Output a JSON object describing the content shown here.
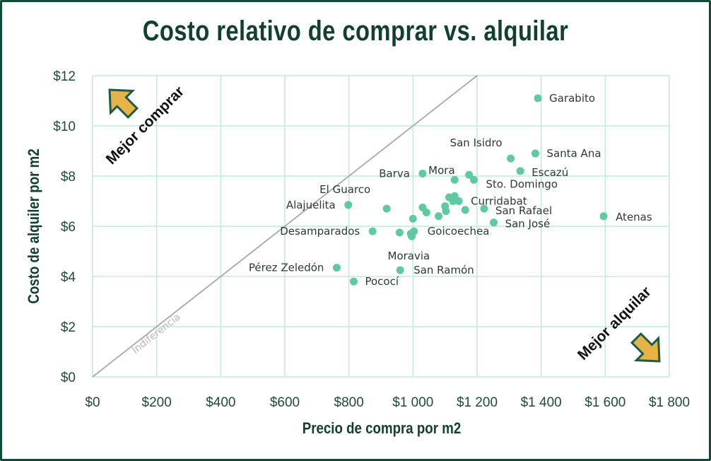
{
  "chart_data": {
    "type": "scatter",
    "title": "Costo relativo de comprar vs. alquilar",
    "xlabel": "Precio de compra por m2",
    "ylabel": "Costo de alquiler por m2",
    "xlim": [
      0,
      1800
    ],
    "ylim": [
      0,
      12
    ],
    "x_ticks": [
      "$0",
      "$200",
      "$400",
      "$600",
      "$800",
      "$1 000",
      "$1 200",
      "$1 400",
      "$1 600",
      "$1 800"
    ],
    "y_ticks": [
      "$0",
      "$2",
      "$4",
      "$6",
      "$8",
      "$10",
      "$12"
    ],
    "grid": true,
    "reference_line": {
      "label": "Indiferencia",
      "slope": 0.01
    },
    "annotations": {
      "top_left": "Mejor comprar",
      "bottom_right": "Mejor alquilar"
    },
    "colors": {
      "points": "#5fc9a0",
      "grid": "#bfece0",
      "reference": "#a8a8a8",
      "arrow_fill": "#e6b347",
      "arrow_stroke": "#1e5a45",
      "title": "#123f33"
    },
    "points": [
      {
        "x": 1390,
        "y": 11.1,
        "label": "Garabito"
      },
      {
        "x": 1305,
        "y": 8.7,
        "label": "San Isidro"
      },
      {
        "x": 1382,
        "y": 8.9,
        "label": "Santa Ana"
      },
      {
        "x": 1335,
        "y": 8.2,
        "label": "Escazú"
      },
      {
        "x": 1175,
        "y": 8.05,
        "label": "Mora"
      },
      {
        "x": 1030,
        "y": 8.1,
        "label": "Barva"
      },
      {
        "x": 1190,
        "y": 7.85,
        "label": "Sto. Domingo"
      },
      {
        "x": 1130,
        "y": 7.85,
        "label": ""
      },
      {
        "x": 1130,
        "y": 7.2,
        "label": ""
      },
      {
        "x": 1113,
        "y": 7.15,
        "label": ""
      },
      {
        "x": 1143,
        "y": 7.0,
        "label": "Curridabat"
      },
      {
        "x": 1125,
        "y": 7.0,
        "label": ""
      },
      {
        "x": 918,
        "y": 6.7,
        "label": "El Guarco"
      },
      {
        "x": 798,
        "y": 6.85,
        "label": "Alajuelita"
      },
      {
        "x": 1030,
        "y": 6.75,
        "label": ""
      },
      {
        "x": 1100,
        "y": 6.8,
        "label": ""
      },
      {
        "x": 1163,
        "y": 6.65,
        "label": ""
      },
      {
        "x": 1222,
        "y": 6.7,
        "label": "San Rafael"
      },
      {
        "x": 1042,
        "y": 6.55,
        "label": ""
      },
      {
        "x": 1103,
        "y": 6.6,
        "label": ""
      },
      {
        "x": 1080,
        "y": 6.4,
        "label": ""
      },
      {
        "x": 1000,
        "y": 6.3,
        "label": ""
      },
      {
        "x": 1252,
        "y": 6.15,
        "label": "San José"
      },
      {
        "x": 1595,
        "y": 6.4,
        "label": "Atenas"
      },
      {
        "x": 874,
        "y": 5.8,
        "label": "Desamparados"
      },
      {
        "x": 958,
        "y": 5.75,
        "label": ""
      },
      {
        "x": 1003,
        "y": 5.8,
        "label": "Goicoechea"
      },
      {
        "x": 993,
        "y": 5.7,
        "label": ""
      },
      {
        "x": 996,
        "y": 5.6,
        "label": "Moravia"
      },
      {
        "x": 762,
        "y": 4.35,
        "label": "Pérez Zeledón"
      },
      {
        "x": 960,
        "y": 4.25,
        "label": "San Ramón"
      },
      {
        "x": 815,
        "y": 3.8,
        "label": "Pococí"
      }
    ]
  }
}
